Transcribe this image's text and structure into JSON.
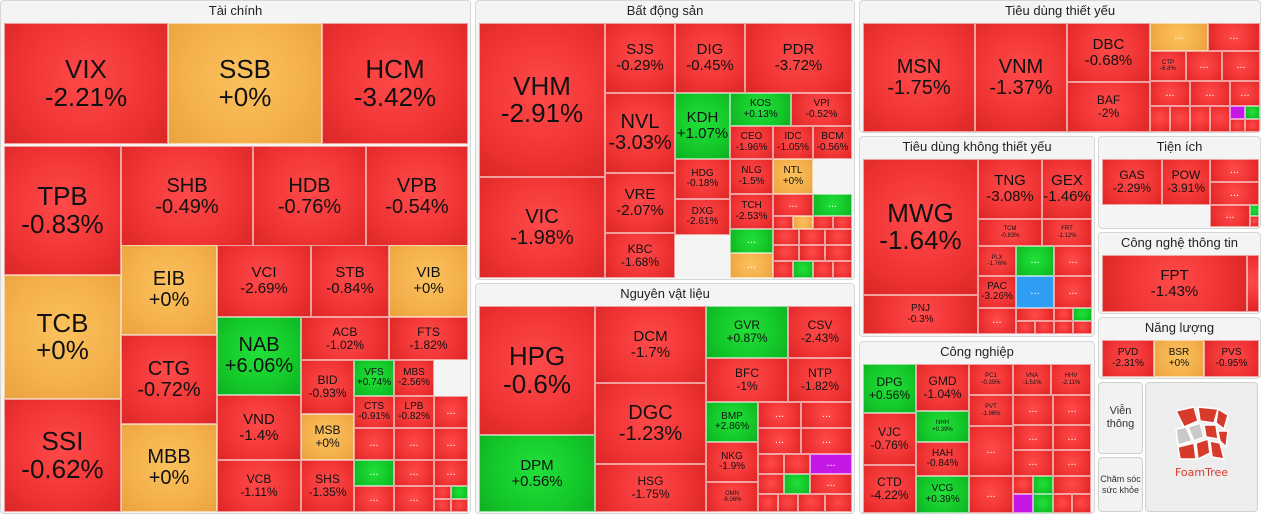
{
  "chart_data": {
    "type": "heatmap",
    "colors": {
      "down": "#f03434",
      "up": "#14c92a",
      "flat": "#f4b04c"
    },
    "panels": [
      {
        "name": "Tài chính",
        "tiles": [
          {
            "s": "VIX",
            "v": "-2.21%"
          },
          {
            "s": "SSB",
            "v": "+0%"
          },
          {
            "s": "HCM",
            "v": "-3.42%"
          },
          {
            "s": "TPB",
            "v": "-0.83%"
          },
          {
            "s": "SHB",
            "v": "-0.49%"
          },
          {
            "s": "HDB",
            "v": "-0.76%"
          },
          {
            "s": "VPB",
            "v": "-0.54%"
          },
          {
            "s": "TCB",
            "v": "+0%"
          },
          {
            "s": "EIB",
            "v": "+0%"
          },
          {
            "s": "VCI",
            "v": "-2.69%"
          },
          {
            "s": "STB",
            "v": "-0.84%"
          },
          {
            "s": "VIB",
            "v": "+0%"
          },
          {
            "s": "SSI",
            "v": "-0.62%"
          },
          {
            "s": "CTG",
            "v": "-0.72%"
          },
          {
            "s": "NAB",
            "v": "+6.06%"
          },
          {
            "s": "ACB",
            "v": "-1.02%"
          },
          {
            "s": "FTS",
            "v": "-1.82%"
          },
          {
            "s": "BID",
            "v": "-0.93%"
          },
          {
            "s": "VFS",
            "v": "+0.74%"
          },
          {
            "s": "MBS",
            "v": "-2.56%"
          },
          {
            "s": "VND",
            "v": "-1.4%"
          },
          {
            "s": "MSB",
            "v": "+0%"
          },
          {
            "s": "CTS",
            "v": "-0.91%"
          },
          {
            "s": "LPB",
            "v": "-0.82%"
          },
          {
            "s": "MBB",
            "v": "+0%"
          },
          {
            "s": "VCB",
            "v": "-1.11%"
          },
          {
            "s": "SHS",
            "v": "-1.35%"
          }
        ]
      },
      {
        "name": "Bất động sản",
        "tiles": [
          {
            "s": "VHM",
            "v": "-2.91%"
          },
          {
            "s": "SJS",
            "v": "-0.29%"
          },
          {
            "s": "DIG",
            "v": "-0.45%"
          },
          {
            "s": "PDR",
            "v": "-3.72%"
          },
          {
            "s": "NVL",
            "v": "-3.03%"
          },
          {
            "s": "KDH",
            "v": "+1.07%"
          },
          {
            "s": "KOS",
            "v": "+0.13%"
          },
          {
            "s": "VPI",
            "v": "-0.52%"
          },
          {
            "s": "CEO",
            "v": "-1.96%"
          },
          {
            "s": "IDC",
            "v": "-1.05%"
          },
          {
            "s": "BCM",
            "v": "-0.56%"
          },
          {
            "s": "VIC",
            "v": "-1.98%"
          },
          {
            "s": "VRE",
            "v": "-2.07%"
          },
          {
            "s": "HDG",
            "v": "-0.18%"
          },
          {
            "s": "NLG",
            "v": "-1.5%"
          },
          {
            "s": "NTL",
            "v": "+0%"
          },
          {
            "s": "TCH",
            "v": "-2.53%"
          },
          {
            "s": "DXG",
            "v": "-2.61%"
          },
          {
            "s": "KBC",
            "v": "-1.68%"
          }
        ]
      },
      {
        "name": "Nguyên vật liệu",
        "tiles": [
          {
            "s": "HPG",
            "v": "-0.6%"
          },
          {
            "s": "DCM",
            "v": "-1.7%"
          },
          {
            "s": "GVR",
            "v": "+0.87%"
          },
          {
            "s": "CSV",
            "v": "-2.43%"
          },
          {
            "s": "BFC",
            "v": "-1%"
          },
          {
            "s": "NTP",
            "v": "-1.82%"
          },
          {
            "s": "DGC",
            "v": "-1.23%"
          },
          {
            "s": "BMP",
            "v": "+2.86%"
          },
          {
            "s": "DPM",
            "v": "+0.56%"
          },
          {
            "s": "NKG",
            "v": "-1.9%"
          },
          {
            "s": "HSG",
            "v": "-1.75%"
          },
          {
            "s": "OMN",
            "v": "-6.06%"
          }
        ]
      },
      {
        "name": "Tiêu dùng thiết yếu",
        "tiles": [
          {
            "s": "MSN",
            "v": "-1.75%"
          },
          {
            "s": "VNM",
            "v": "-1.37%"
          },
          {
            "s": "DBC",
            "v": "-0.68%"
          },
          {
            "s": "CTP",
            "v": "-6.8%"
          },
          {
            "s": "BAF",
            "v": "-2%"
          }
        ]
      },
      {
        "name": "Tiêu dùng không thiết yếu",
        "tiles": [
          {
            "s": "MWG",
            "v": "-1.64%"
          },
          {
            "s": "TNG",
            "v": "-3.08%"
          },
          {
            "s": "GEX",
            "v": "-1.46%"
          },
          {
            "s": "TCM",
            "v": "-0.83%"
          },
          {
            "s": "FRT",
            "v": "-1.12%"
          },
          {
            "s": "PLX",
            "v": "-1.76%"
          },
          {
            "s": "PAC",
            "v": "-3.26%"
          },
          {
            "s": "PNJ",
            "v": "-0.3%"
          }
        ]
      },
      {
        "name": "Tiện ích",
        "tiles": [
          {
            "s": "GAS",
            "v": "-2.29%"
          },
          {
            "s": "POW",
            "v": "-3.91%"
          }
        ]
      },
      {
        "name": "Công nghệ thông tin",
        "tiles": [
          {
            "s": "FPT",
            "v": "-1.43%"
          }
        ]
      },
      {
        "name": "Năng lượng",
        "tiles": [
          {
            "s": "PVD",
            "v": "-2.31%"
          },
          {
            "s": "BSR",
            "v": "+0%"
          },
          {
            "s": "PVS",
            "v": "-0.95%"
          }
        ]
      },
      {
        "name": "Công nghiệp",
        "tiles": [
          {
            "s": "DPG",
            "v": "+0.56%"
          },
          {
            "s": "GMD",
            "v": "-1.04%"
          },
          {
            "s": "PC1",
            "v": "-0.35%"
          },
          {
            "s": "VNA",
            "v": "-1.51%"
          },
          {
            "s": "HHV",
            "v": "-2.11%"
          },
          {
            "s": "PVT",
            "v": "-1.96%"
          },
          {
            "s": "VJC",
            "v": "-0.76%"
          },
          {
            "s": "NHH",
            "v": "+0.39%"
          },
          {
            "s": "HAH",
            "v": "-0.84%"
          },
          {
            "s": "CTD",
            "v": "-4.22%"
          },
          {
            "s": "VCG",
            "v": "+0.39%"
          }
        ]
      }
    ],
    "more_label": "...",
    "other_sectors": [
      "Viễn thông",
      "Chăm sóc sức khỏe"
    ],
    "logo": "FoamTree"
  }
}
